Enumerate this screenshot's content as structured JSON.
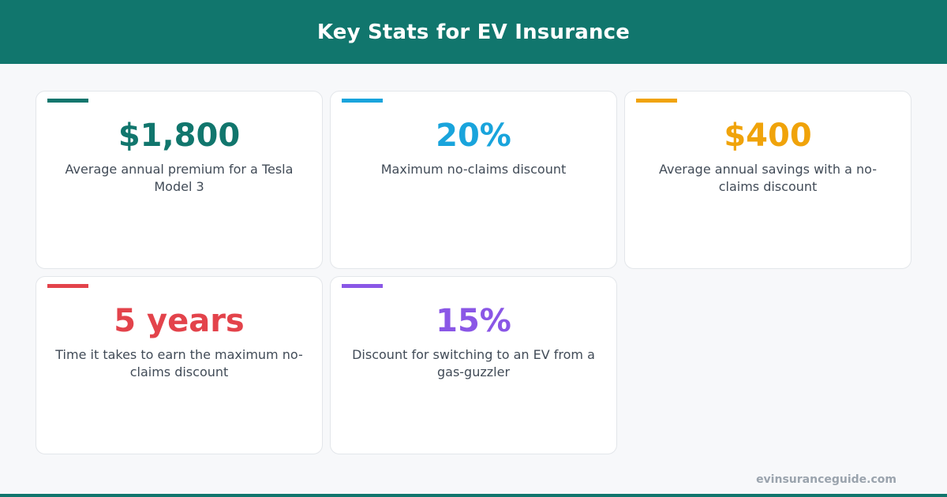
{
  "header": {
    "title": "Key Stats for EV Insurance"
  },
  "stats": [
    {
      "value": "$1,800",
      "description": "Average annual premium for a Tesla Model 3",
      "color": "#11766d"
    },
    {
      "value": "20%",
      "description": "Maximum no-claims discount",
      "color": "#19a4dc"
    },
    {
      "value": "$400",
      "description": "Average annual savings with a no-claims discount",
      "color": "#f0a30a"
    },
    {
      "value": "5 years",
      "description": "Time it takes to earn the maximum no-claims discount",
      "color": "#e3434b"
    },
    {
      "value": "15%",
      "description": "Discount for switching to an EV from a gas-guzzler",
      "color": "#8a57e6"
    }
  ],
  "footer": {
    "site": "evinsuranceguide.com"
  },
  "colors": {
    "brand": "#11766d",
    "background": "#f7f8fa",
    "text": "#414b57"
  }
}
